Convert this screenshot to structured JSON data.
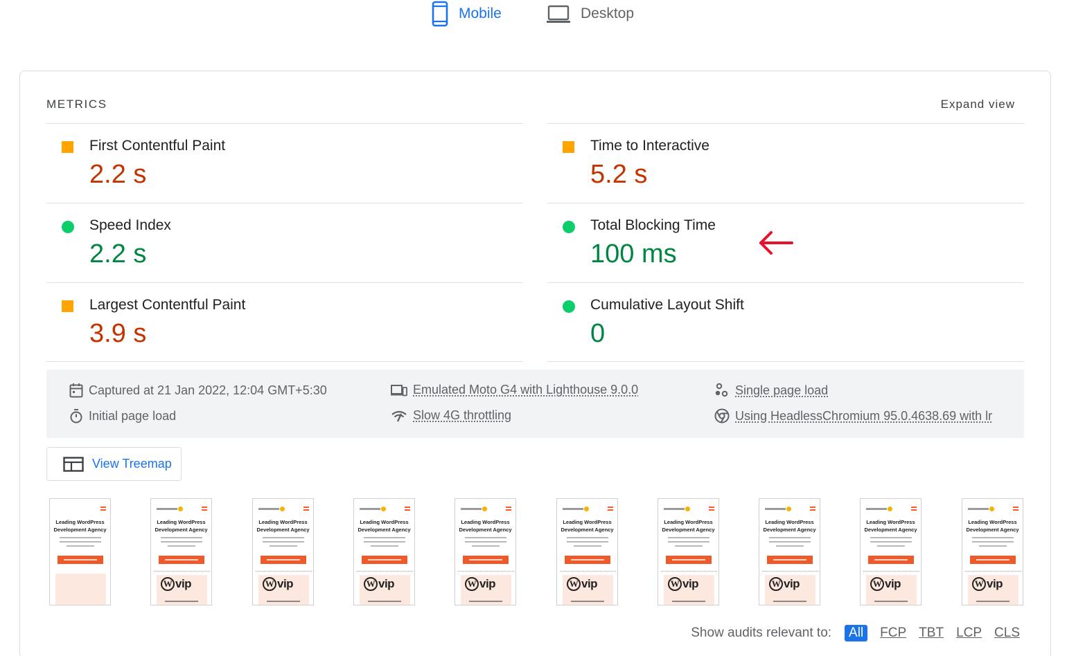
{
  "tabs": [
    {
      "label": "Mobile",
      "active": true
    },
    {
      "label": "Desktop",
      "active": false
    }
  ],
  "metrics": {
    "heading": "METRICS",
    "expand_label": "Expand view",
    "left": [
      {
        "label": "First Contentful Paint",
        "value": "2.2 s",
        "rating": "average"
      },
      {
        "label": "Speed Index",
        "value": "2.2 s",
        "rating": "good"
      },
      {
        "label": "Largest Contentful Paint",
        "value": "3.9 s",
        "rating": "average"
      }
    ],
    "right": [
      {
        "label": "Time to Interactive",
        "value": "5.2 s",
        "rating": "average"
      },
      {
        "label": "Total Blocking Time",
        "value": "100 ms",
        "rating": "good"
      },
      {
        "label": "Cumulative Layout Shift",
        "value": "0",
        "rating": "good"
      }
    ]
  },
  "runtime": {
    "captured": "Captured at 21 Jan 2022, 12:04 GMT+5:30",
    "page_load": "Initial page load",
    "device": "Emulated Moto G4 with Lighthouse 9.0.0",
    "throttling": "Slow 4G throttling",
    "session": "Single page load",
    "browser": "Using HeadlessChromium 95.0.4638.69 with lr"
  },
  "treemap_label": "View Treemap",
  "filmstrip": {
    "frame_count": 10,
    "headline_line1": "Leading WordPress",
    "headline_line2": "Development Agency",
    "badge": "vip"
  },
  "audits_filter": {
    "label": "Show audits relevant to:",
    "chips": [
      "All",
      "FCP",
      "TBT",
      "LCP",
      "CLS"
    ],
    "active": "All"
  },
  "colors": {
    "accent": "#1a73e8",
    "average": "#c33300",
    "average_indicator": "#ffa400",
    "good": "#018642",
    "good_indicator": "#0cce6b",
    "annotation_arrow": "#e8102a"
  }
}
